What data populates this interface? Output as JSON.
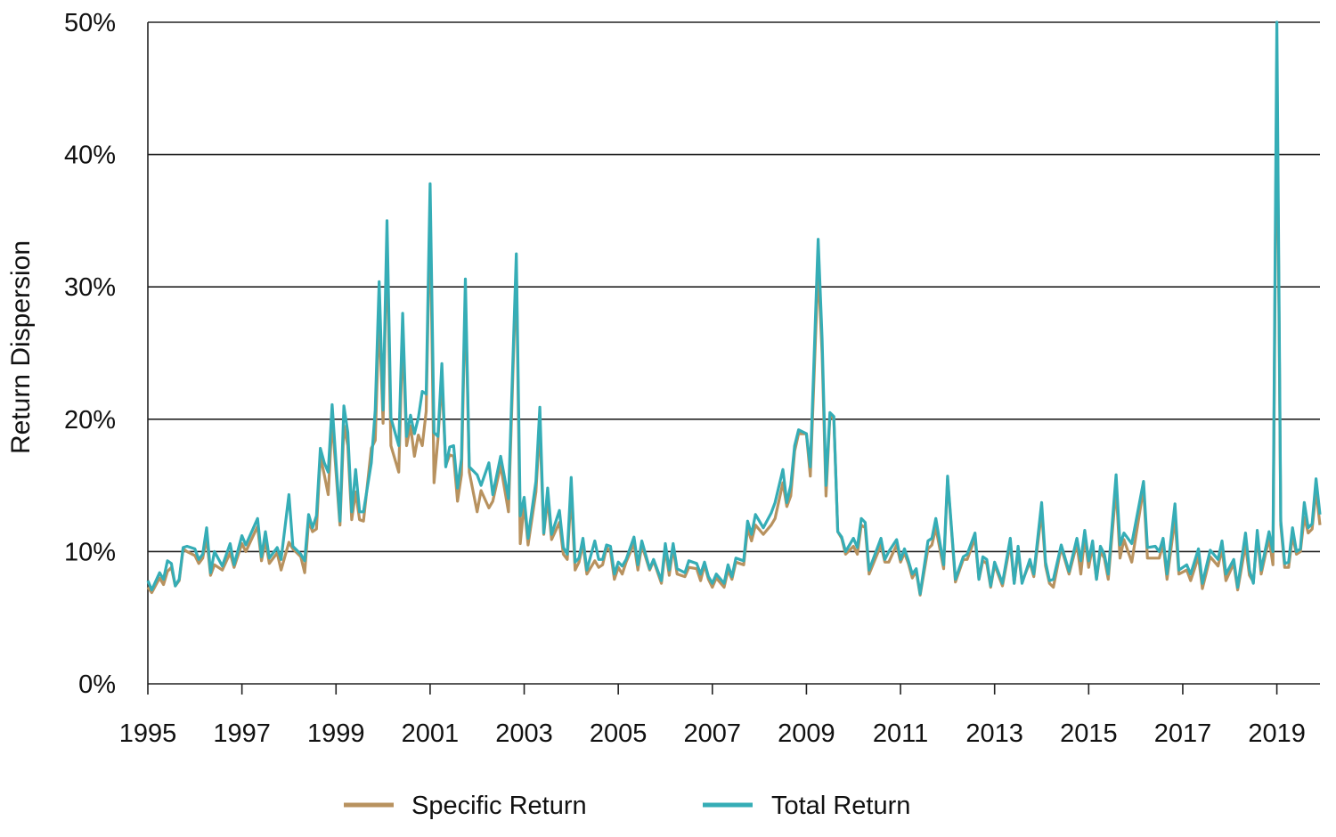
{
  "chart_data": {
    "type": "line",
    "title": "",
    "xlabel": "",
    "ylabel": "Return Dispersion",
    "xlim": [
      "1995-01",
      "2019-12"
    ],
    "ylim": [
      0,
      50
    ],
    "y_unit": "%",
    "yticks": [
      0,
      10,
      20,
      30,
      40,
      50
    ],
    "ytick_labels": [
      "0%",
      "10%",
      "20%",
      "30%",
      "40%",
      "50%"
    ],
    "xtick_labels": [
      "1995",
      "1997",
      "1999",
      "2001",
      "2003",
      "2005",
      "2007",
      "2009",
      "2011",
      "2013",
      "2015",
      "2017",
      "2019"
    ],
    "grid": "horizontal",
    "legend_position": "bottom",
    "series": [
      {
        "name": "Specific Return",
        "color": "#b8925f"
      },
      {
        "name": "Total Return",
        "color": "#35adb6"
      }
    ],
    "point_fields": [
      "date",
      "Specific Return",
      "Total Return"
    ],
    "points": [
      [
        "1995-01",
        7.3,
        7.8
      ],
      [
        "1995-02",
        6.9,
        7.1
      ],
      [
        "1995-04",
        8.0,
        8.4
      ],
      [
        "1995-05",
        7.5,
        7.9
      ],
      [
        "1995-06",
        8.5,
        9.3
      ],
      [
        "1995-07",
        8.8,
        9.1
      ],
      [
        "1995-08",
        7.4,
        7.4
      ],
      [
        "1995-09",
        7.8,
        7.9
      ],
      [
        "1995-10",
        10.2,
        10.3
      ],
      [
        "1995-11",
        10.0,
        10.4
      ],
      [
        "1996-01",
        9.7,
        10.2
      ],
      [
        "1996-02",
        9.1,
        9.4
      ],
      [
        "1996-03",
        9.5,
        9.8
      ],
      [
        "1996-04",
        11.0,
        11.8
      ],
      [
        "1996-05",
        8.2,
        8.4
      ],
      [
        "1996-06",
        9.0,
        10.0
      ],
      [
        "1996-08",
        8.6,
        8.9
      ],
      [
        "1996-10",
        9.9,
        10.6
      ],
      [
        "1996-11",
        8.8,
        9.0
      ],
      [
        "1997-01",
        10.6,
        11.2
      ],
      [
        "1997-02",
        10.0,
        10.5
      ],
      [
        "1997-05",
        11.9,
        12.5
      ],
      [
        "1997-06",
        9.3,
        9.6
      ],
      [
        "1997-07",
        10.8,
        11.5
      ],
      [
        "1997-08",
        9.1,
        9.5
      ],
      [
        "1997-10",
        9.9,
        10.3
      ],
      [
        "1997-11",
        8.6,
        9.4
      ],
      [
        "1998-01",
        10.7,
        14.3
      ],
      [
        "1998-02",
        10.2,
        10.4
      ],
      [
        "1998-04",
        9.6,
        9.8
      ],
      [
        "1998-05",
        8.4,
        9.3
      ],
      [
        "1998-06",
        12.3,
        12.8
      ],
      [
        "1998-07",
        11.5,
        11.8
      ],
      [
        "1998-08",
        11.7,
        12.7
      ],
      [
        "1998-09",
        17.2,
        17.8
      ],
      [
        "1998-10",
        15.8,
        16.7
      ],
      [
        "1998-11",
        14.3,
        16.0
      ],
      [
        "1998-12",
        20.0,
        21.1
      ],
      [
        "1999-02",
        12.0,
        12.3
      ],
      [
        "1999-03",
        19.5,
        21.0
      ],
      [
        "1999-04",
        18.0,
        19.0
      ],
      [
        "1999-05",
        12.4,
        13.0
      ],
      [
        "1999-06",
        14.5,
        16.2
      ],
      [
        "1999-07",
        12.4,
        13.0
      ],
      [
        "1999-08",
        12.3,
        13.0
      ],
      [
        "1999-10",
        17.8,
        16.7
      ],
      [
        "1999-11",
        18.4,
        20.7
      ],
      [
        "1999-12",
        28.0,
        30.4
      ],
      [
        "2000-01",
        19.7,
        20.7
      ],
      [
        "2000-02",
        33.5,
        35.0
      ],
      [
        "2000-03",
        18.0,
        20.1
      ],
      [
        "2000-05",
        16.0,
        18.0
      ],
      [
        "2000-06",
        26.5,
        28.0
      ],
      [
        "2000-07",
        18.0,
        18.7
      ],
      [
        "2000-08",
        19.5,
        20.3
      ],
      [
        "2000-09",
        17.2,
        18.9
      ],
      [
        "2000-10",
        18.8,
        20.1
      ],
      [
        "2000-11",
        18.0,
        22.1
      ],
      [
        "2000-12",
        20.6,
        21.9
      ],
      [
        "2001-01",
        36.0,
        37.8
      ],
      [
        "2001-02",
        15.2,
        19.0
      ],
      [
        "2001-03",
        18.5,
        18.7
      ],
      [
        "2001-04",
        23.0,
        24.2
      ],
      [
        "2001-05",
        16.5,
        16.4
      ],
      [
        "2001-06",
        17.3,
        17.9
      ],
      [
        "2001-07",
        17.2,
        18.0
      ],
      [
        "2001-08",
        13.8,
        14.8
      ],
      [
        "2001-09",
        15.8,
        17.0
      ],
      [
        "2001-10",
        29.5,
        30.6
      ],
      [
        "2001-11",
        16.0,
        16.4
      ],
      [
        "2002-01",
        13.0,
        15.8
      ],
      [
        "2002-02",
        14.6,
        15.0
      ],
      [
        "2002-04",
        13.3,
        16.7
      ],
      [
        "2002-05",
        13.8,
        14.3
      ],
      [
        "2002-07",
        16.5,
        17.2
      ],
      [
        "2002-09",
        13.0,
        14.0
      ],
      [
        "2002-11",
        31.5,
        32.5
      ],
      [
        "2002-12",
        10.6,
        12.7
      ],
      [
        "2003-01",
        13.6,
        14.1
      ],
      [
        "2003-02",
        10.5,
        11.0
      ],
      [
        "2003-04",
        14.5,
        15.3
      ],
      [
        "2003-05",
        19.5,
        20.9
      ],
      [
        "2003-06",
        11.3,
        11.4
      ],
      [
        "2003-07",
        14.0,
        14.8
      ],
      [
        "2003-08",
        10.9,
        11.3
      ],
      [
        "2003-10",
        12.2,
        13.1
      ],
      [
        "2003-11",
        9.8,
        10.3
      ],
      [
        "2003-12",
        9.4,
        9.8
      ],
      [
        "2004-01",
        14.5,
        15.6
      ],
      [
        "2004-02",
        8.6,
        9.2
      ],
      [
        "2004-03",
        9.2,
        9.5
      ],
      [
        "2004-04",
        10.6,
        11.0
      ],
      [
        "2004-05",
        8.3,
        8.6
      ],
      [
        "2004-07",
        9.3,
        10.8
      ],
      [
        "2004-08",
        8.8,
        9.4
      ],
      [
        "2004-09",
        9.0,
        9.4
      ],
      [
        "2004-10",
        10.3,
        10.5
      ],
      [
        "2004-11",
        10.0,
        10.4
      ],
      [
        "2004-12",
        7.9,
        8.3
      ],
      [
        "2005-01",
        8.8,
        9.2
      ],
      [
        "2005-02",
        8.3,
        8.9
      ],
      [
        "2005-03",
        9.2,
        9.4
      ],
      [
        "2005-05",
        10.6,
        11.1
      ],
      [
        "2005-06",
        8.6,
        9.0
      ],
      [
        "2005-07",
        10.5,
        10.8
      ],
      [
        "2005-09",
        8.6,
        8.7
      ],
      [
        "2005-10",
        9.3,
        9.4
      ],
      [
        "2005-12",
        7.6,
        7.8
      ],
      [
        "2006-01",
        10.2,
        10.6
      ],
      [
        "2006-02",
        8.2,
        8.6
      ],
      [
        "2006-03",
        10.3,
        10.6
      ],
      [
        "2006-04",
        8.3,
        8.7
      ],
      [
        "2006-06",
        8.1,
        8.4
      ],
      [
        "2006-07",
        8.8,
        9.3
      ],
      [
        "2006-09",
        8.7,
        9.1
      ],
      [
        "2006-10",
        7.8,
        8.3
      ],
      [
        "2006-11",
        9.0,
        9.2
      ],
      [
        "2006-12",
        7.9,
        8.1
      ],
      [
        "2007-01",
        7.3,
        7.6
      ],
      [
        "2007-02",
        8.0,
        8.3
      ],
      [
        "2007-04",
        7.3,
        7.6
      ],
      [
        "2007-05",
        8.6,
        9.0
      ],
      [
        "2007-06",
        7.9,
        8.1
      ],
      [
        "2007-07",
        9.2,
        9.5
      ],
      [
        "2007-09",
        9.0,
        9.3
      ],
      [
        "2007-10",
        11.8,
        12.3
      ],
      [
        "2007-11",
        10.8,
        11.3
      ],
      [
        "2007-12",
        12.0,
        12.8
      ],
      [
        "2008-02",
        11.3,
        11.8
      ],
      [
        "2008-04",
        12.0,
        12.9
      ],
      [
        "2008-05",
        12.5,
        13.7
      ],
      [
        "2008-07",
        15.2,
        16.2
      ],
      [
        "2008-08",
        13.4,
        13.7
      ],
      [
        "2008-09",
        14.2,
        15.0
      ],
      [
        "2008-10",
        17.6,
        18.0
      ],
      [
        "2008-11",
        18.9,
        19.2
      ],
      [
        "2009-01",
        18.9,
        18.9
      ],
      [
        "2009-02",
        15.7,
        16.4
      ],
      [
        "2009-04",
        31.5,
        33.6
      ],
      [
        "2009-05",
        25.0,
        26.1
      ],
      [
        "2009-06",
        14.2,
        15.0
      ],
      [
        "2009-07",
        20.3,
        20.5
      ],
      [
        "2009-08",
        20.0,
        20.2
      ],
      [
        "2009-09",
        11.5,
        11.5
      ],
      [
        "2009-10",
        11.0,
        11.1
      ],
      [
        "2009-11",
        9.8,
        10.0
      ],
      [
        "2010-01",
        10.4,
        11.0
      ],
      [
        "2010-02",
        9.8,
        10.3
      ],
      [
        "2010-03",
        12.0,
        12.5
      ],
      [
        "2010-04",
        11.8,
        12.2
      ],
      [
        "2010-05",
        8.3,
        8.6
      ],
      [
        "2010-08",
        10.5,
        11.0
      ],
      [
        "2010-09",
        9.2,
        9.4
      ],
      [
        "2010-10",
        9.2,
        10.0
      ],
      [
        "2010-12",
        10.5,
        10.9
      ],
      [
        "2011-01",
        9.2,
        9.4
      ],
      [
        "2011-02",
        9.9,
        10.2
      ],
      [
        "2011-03",
        9.1,
        9.3
      ],
      [
        "2011-04",
        8.0,
        8.3
      ],
      [
        "2011-05",
        8.5,
        8.7
      ],
      [
        "2011-06",
        6.7,
        6.8
      ],
      [
        "2011-08",
        10.2,
        10.8
      ],
      [
        "2011-09",
        10.5,
        11.0
      ],
      [
        "2011-10",
        11.8,
        12.5
      ],
      [
        "2011-12",
        8.7,
        9.0
      ],
      [
        "2012-01",
        15.5,
        15.7
      ],
      [
        "2012-03",
        7.7,
        7.9
      ],
      [
        "2012-05",
        9.4,
        9.6
      ],
      [
        "2012-06",
        9.4,
        9.8
      ],
      [
        "2012-08",
        11.0,
        11.4
      ],
      [
        "2012-09",
        7.9,
        7.9
      ],
      [
        "2012-10",
        9.3,
        9.6
      ],
      [
        "2012-11",
        9.1,
        9.4
      ],
      [
        "2012-12",
        7.3,
        7.4
      ],
      [
        "2013-01",
        9.0,
        9.2
      ],
      [
        "2013-03",
        7.4,
        7.6
      ],
      [
        "2013-05",
        10.6,
        11.0
      ],
      [
        "2013-06",
        7.6,
        7.6
      ],
      [
        "2013-07",
        10.0,
        10.4
      ],
      [
        "2013-08",
        7.7,
        7.6
      ],
      [
        "2013-10",
        9.2,
        9.4
      ],
      [
        "2013-11",
        8.1,
        8.3
      ],
      [
        "2014-01",
        13.0,
        13.7
      ],
      [
        "2014-02",
        8.9,
        9.2
      ],
      [
        "2014-03",
        7.6,
        7.8
      ],
      [
        "2014-04",
        7.3,
        7.9
      ],
      [
        "2014-06",
        10.3,
        10.5
      ],
      [
        "2014-08",
        8.3,
        8.5
      ],
      [
        "2014-10",
        10.6,
        11.0
      ],
      [
        "2014-11",
        8.3,
        9.3
      ],
      [
        "2014-12",
        11.1,
        11.6
      ],
      [
        "2015-01",
        8.8,
        9.3
      ],
      [
        "2015-02",
        10.4,
        10.8
      ],
      [
        "2015-03",
        7.9,
        7.9
      ],
      [
        "2015-04",
        10.0,
        10.4
      ],
      [
        "2015-05",
        9.5,
        9.8
      ],
      [
        "2015-06",
        7.9,
        8.3
      ],
      [
        "2015-08",
        14.8,
        15.8
      ],
      [
        "2015-09",
        9.5,
        10.5
      ],
      [
        "2015-10",
        10.9,
        11.4
      ],
      [
        "2015-12",
        9.2,
        10.6
      ],
      [
        "2016-03",
        14.8,
        15.3
      ],
      [
        "2016-04",
        9.5,
        10.3
      ],
      [
        "2016-06",
        9.5,
        10.4
      ],
      [
        "2016-07",
        9.5,
        10.0
      ],
      [
        "2016-08",
        10.6,
        11.0
      ],
      [
        "2016-09",
        7.9,
        8.3
      ],
      [
        "2016-11",
        12.5,
        13.6
      ],
      [
        "2016-12",
        8.3,
        8.6
      ],
      [
        "2017-02",
        8.6,
        9.0
      ],
      [
        "2017-03",
        7.8,
        8.3
      ],
      [
        "2017-05",
        9.6,
        10.2
      ],
      [
        "2017-06",
        7.2,
        7.6
      ],
      [
        "2017-08",
        9.6,
        10.1
      ],
      [
        "2017-10",
        8.9,
        9.4
      ],
      [
        "2017-11",
        10.2,
        10.8
      ],
      [
        "2017-12",
        7.8,
        8.3
      ],
      [
        "2018-02",
        9.1,
        9.4
      ],
      [
        "2018-03",
        7.1,
        7.3
      ],
      [
        "2018-05",
        10.5,
        11.4
      ],
      [
        "2018-06",
        8.2,
        8.6
      ],
      [
        "2018-07",
        7.7,
        7.6
      ],
      [
        "2018-08",
        11.2,
        11.6
      ],
      [
        "2018-09",
        8.3,
        8.6
      ],
      [
        "2018-11",
        11.0,
        11.5
      ],
      [
        "2018-12",
        9.0,
        10.0
      ],
      [
        "2019-01",
        47.0,
        50.0
      ],
      [
        "2019-02",
        12.0,
        12.3
      ],
      [
        "2019-03",
        8.8,
        9.1
      ],
      [
        "2019-04",
        8.8,
        9.2
      ],
      [
        "2019-05",
        11.2,
        11.8
      ],
      [
        "2019-06",
        9.8,
        10.0
      ],
      [
        "2019-07",
        10.0,
        10.2
      ],
      [
        "2019-08",
        12.6,
        13.7
      ],
      [
        "2019-09",
        11.4,
        11.8
      ],
      [
        "2019-10",
        11.7,
        12.1
      ],
      [
        "2019-11",
        14.6,
        15.5
      ],
      [
        "2019-12",
        12.0,
        12.8
      ]
    ]
  }
}
